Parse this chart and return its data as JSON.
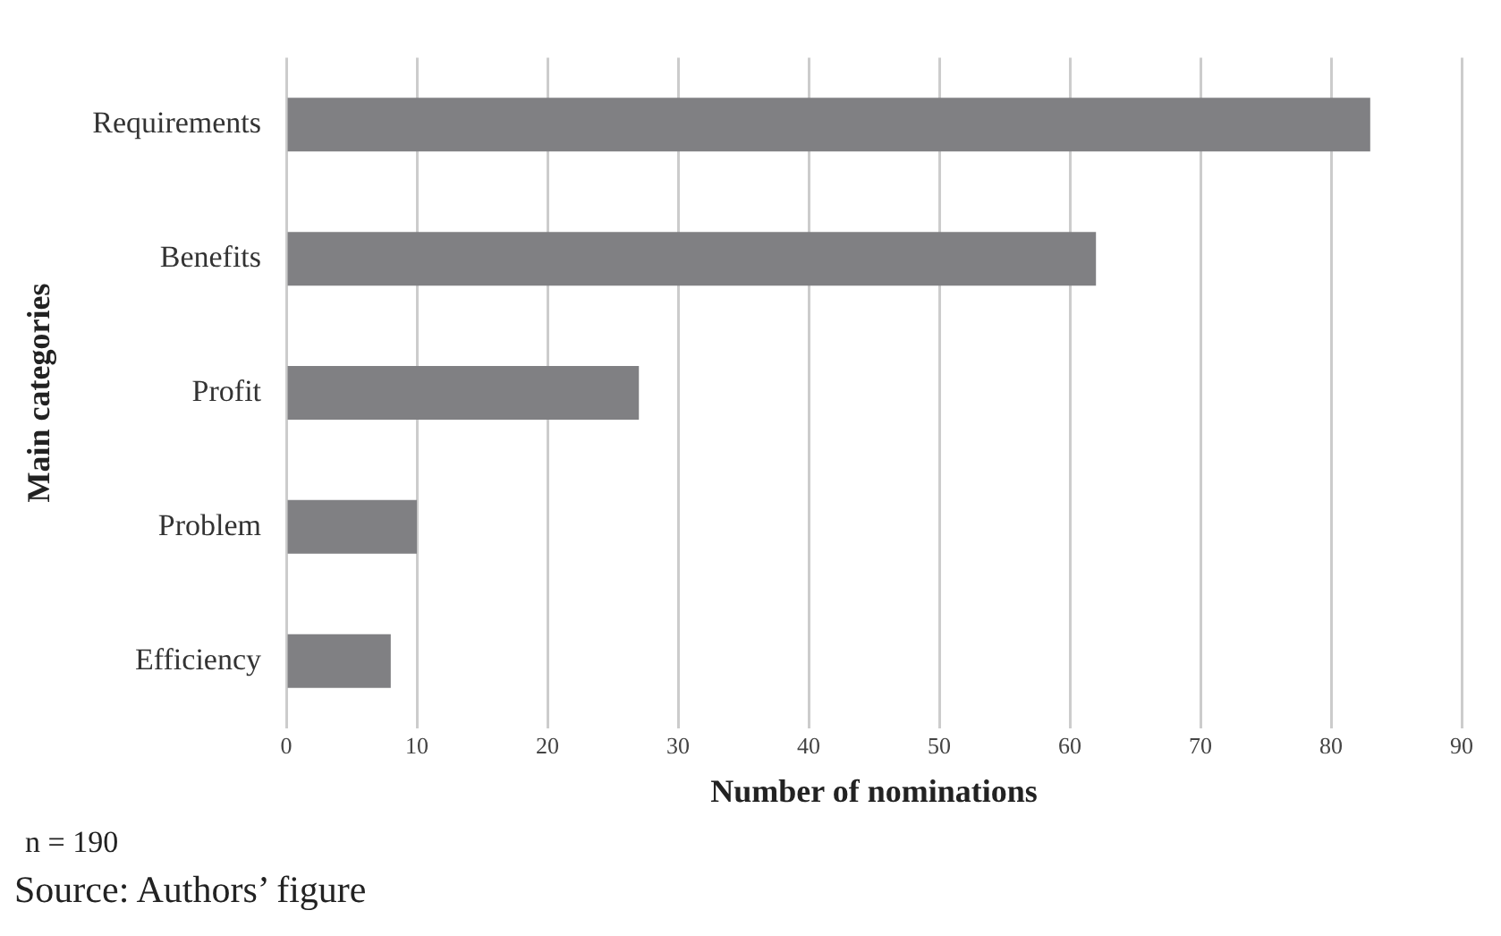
{
  "chart_data": {
    "type": "bar",
    "orientation": "horizontal",
    "ylabel": "Main categories",
    "xlabel": "Number of nominations",
    "categories": [
      "Requirements",
      "Benefits",
      "Profit",
      "Problem",
      "Efficiency"
    ],
    "values": [
      83,
      62,
      27,
      10,
      8
    ],
    "color": "#808083",
    "xlim": [
      0,
      90
    ],
    "xticks": [
      0,
      10,
      20,
      30,
      40,
      50,
      60,
      70,
      80,
      90
    ],
    "grid": "x",
    "annotations": [
      "n = 190",
      "Source: Authors’ figure"
    ]
  }
}
